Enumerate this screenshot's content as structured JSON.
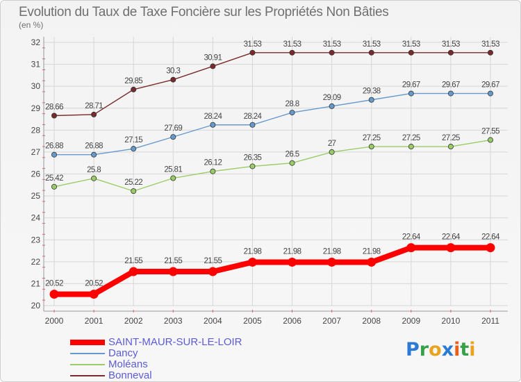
{
  "chart_data": {
    "type": "line",
    "title": "Evolution du Taux de Taxe Foncière sur les Propriétés Non Bâties",
    "subtitle": "(en %)",
    "categories": [
      "2000",
      "2001",
      "2002",
      "2003",
      "2004",
      "2005",
      "2006",
      "2007",
      "2008",
      "2009",
      "2010",
      "2011"
    ],
    "ylim": [
      20,
      32
    ],
    "yticks": [
      20,
      21,
      22,
      23,
      24,
      25,
      26,
      27,
      28,
      29,
      30,
      31,
      32
    ],
    "grid": true,
    "series": [
      {
        "name": "SAINT-MAUR-SUR-LE-LOIR",
        "color": "#ff0000",
        "values": [
          20.52,
          20.52,
          21.55,
          21.55,
          21.55,
          21.98,
          21.98,
          21.98,
          21.98,
          22.64,
          22.64,
          22.64
        ],
        "labels": [
          "20.52",
          "20.52",
          "21.55",
          "21.55",
          "21.55",
          "21.98",
          "21.98",
          "21.98",
          "21.98",
          "22.64",
          "22.64",
          "22.64"
        ]
      },
      {
        "name": "Dancy",
        "color": "#6699cc",
        "values": [
          26.88,
          26.88,
          27.15,
          27.69,
          28.24,
          28.24,
          28.8,
          29.09,
          29.38,
          29.67,
          29.67,
          29.67
        ],
        "labels": [
          "26.88",
          "26.88",
          "27.15",
          "27.69",
          "28.24",
          "28.24",
          "28.8",
          "29.09",
          "29.38",
          "29.67",
          "29.67",
          "29.67"
        ]
      },
      {
        "name": "Moléans",
        "color": "#99cc66",
        "values": [
          25.42,
          25.8,
          25.22,
          25.81,
          26.12,
          26.35,
          26.5,
          27,
          27.25,
          27.25,
          27.25,
          27.55
        ],
        "labels": [
          "25.42",
          "25.8",
          "25.22",
          "25.81",
          "26.12",
          "26.35",
          "26.5",
          "27",
          "27.25",
          "27.25",
          "27.25",
          "27.55"
        ]
      },
      {
        "name": "Bonneval",
        "color": "#7a2a2a",
        "values": [
          28.66,
          28.71,
          29.85,
          30.3,
          30.91,
          31.53,
          31.53,
          31.53,
          31.53,
          31.53,
          31.53,
          31.53
        ],
        "labels": [
          "28.66",
          "28.71",
          "29.85",
          "30.3",
          "30.91",
          "31.53",
          "31.53",
          "31.53",
          "31.53",
          "31.53",
          "31.53",
          "31.53"
        ]
      }
    ],
    "legend_position": "bottom-left"
  },
  "logo": {
    "letters": [
      "P",
      "r",
      "o",
      "x",
      "i",
      "t",
      "i"
    ]
  }
}
